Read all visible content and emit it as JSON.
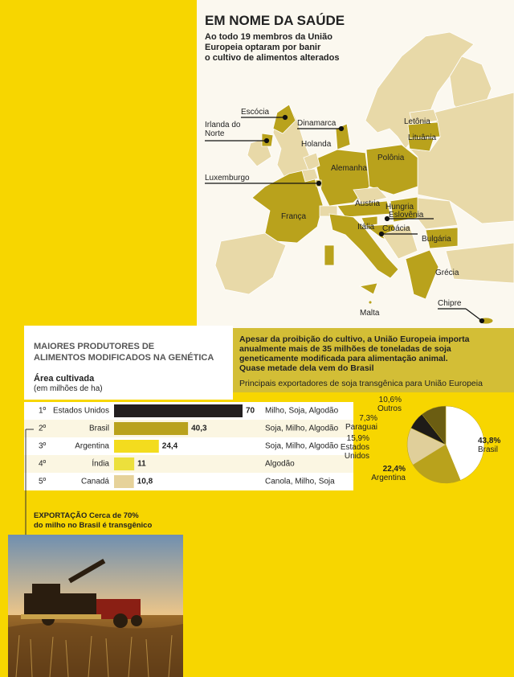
{
  "map": {
    "title": "EM NOME DA SAÚDE",
    "subtitle": [
      "Ao todo 19 membros da União",
      "Europeia optaram por banir",
      "o cultivo de alimentos alterados"
    ],
    "labels": [
      "Escócia",
      "Irlanda do Norte",
      "Dinamarca",
      "Holanda",
      "Letônia",
      "Lituânia",
      "Polônia",
      "Alemanha",
      "Luxemburgo",
      "Áustria",
      "Hungria",
      "Eslovênia",
      "França",
      "Itália",
      "Croácia",
      "Bulgária",
      "Grécia",
      "Malta",
      "Chipre"
    ]
  },
  "chart_data": [
    {
      "type": "bar",
      "title": [
        "MAIORES PRODUTORES DE",
        "ALIMENTOS MODIFICADOS NA GENÉTICA"
      ],
      "subtitle": "Área cultivada",
      "unit": "(em milhões de ha)",
      "ranks": [
        "1º",
        "2º",
        "3º",
        "4º",
        "5º"
      ],
      "categories": [
        "Estados Unidos",
        "Brasil",
        "Argentina",
        "Índia",
        "Canadá"
      ],
      "values": [
        70,
        40.3,
        24.4,
        11,
        10.8
      ],
      "value_labels": [
        "70",
        "40,3",
        "24,4",
        "11",
        "10,8"
      ],
      "colors": [
        "#231f20",
        "#b9a21c",
        "#f3dc1e",
        "#ece03c",
        "#e6d29a"
      ],
      "crops": [
        "Milho, Soja, Algodão",
        "Soja, Milho, Algodão",
        "Soja, Milho, Algodão",
        "Algodão",
        "Canola, Milho, Soja"
      ]
    },
    {
      "type": "pie",
      "intro": [
        "Apesar da proibição do cultivo, a União Europeia importa",
        "anualmente mais de 35 milhões de toneladas de soja",
        "geneticamente modificada para alimentação animal.",
        "Quase metade dela vem do Brasil"
      ],
      "title": "Principais exportadores de soja transgênica para União Europeia",
      "categories": [
        "Brasil",
        "Argentina",
        "Estados Unidos",
        "Paraguai",
        "Outros"
      ],
      "values": [
        43.8,
        22.4,
        15.9,
        7.3,
        10.6
      ],
      "value_labels": [
        "43,8%",
        "22,4%",
        "15,9%",
        "7,3%",
        "10,6%"
      ],
      "colors": [
        "#ffffff",
        "#b9a21c",
        "#e0cf9a",
        "#1e1b18",
        "#6b5d12"
      ]
    }
  ],
  "photo": {
    "caption": [
      "EXPORTAÇÃO Cerca de 70%",
      "do milho no Brasil é transgênico"
    ]
  }
}
